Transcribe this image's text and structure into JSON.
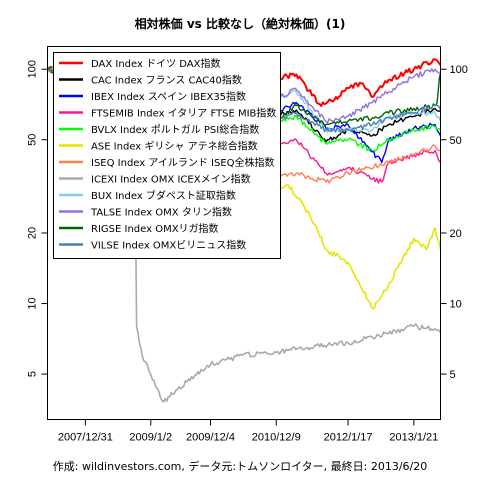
{
  "chart_data": {
    "type": "line",
    "title": "相対株価 vs 比較なし（絶対株価）(1)",
    "footer": "作成: wildinvestors.com, データ元:トムソンロイター, 最終日: 2013/6/20",
    "y_scale": "log",
    "ylim": [
      3.2,
      125
    ],
    "y_ticks": [
      5,
      10,
      20,
      50,
      100
    ],
    "x_range": [
      "2007-06-01",
      "2013-06-20"
    ],
    "x_ticks": [
      "2007/12/31",
      "2009/1/2",
      "2009/12/4",
      "2010/12/9",
      "2012/1/17",
      "2013/1/21"
    ],
    "legend_position": "top-left",
    "series": [
      {
        "name": "DAX Index ドイツ DAX指数",
        "color": "#ff0000",
        "lw": 2.0,
        "points": [
          [
            "2007-06-01",
            100
          ],
          [
            "2007-12-31",
            104
          ],
          [
            "2008-03-01",
            92
          ],
          [
            "2008-06-01",
            85
          ],
          [
            "2008-09-01",
            78
          ],
          [
            "2008-10-15",
            62
          ],
          [
            "2009-01-02",
            60
          ],
          [
            "2009-03-10",
            48
          ],
          [
            "2009-06-01",
            65
          ],
          [
            "2009-09-01",
            72
          ],
          [
            "2009-12-04",
            78
          ],
          [
            "2010-06-01",
            82
          ],
          [
            "2010-12-09",
            92
          ],
          [
            "2011-04-01",
            95
          ],
          [
            "2011-08-10",
            71
          ],
          [
            "2011-11-01",
            74
          ],
          [
            "2012-01-17",
            83
          ],
          [
            "2012-04-01",
            87
          ],
          [
            "2012-06-01",
            76
          ],
          [
            "2012-09-01",
            90
          ],
          [
            "2013-01-21",
            100
          ],
          [
            "2013-05-20",
            110
          ],
          [
            "2013-06-20",
            104
          ]
        ]
      },
      {
        "name": "CAC Index フランス CAC40指数",
        "color": "#000000",
        "lw": 1.4,
        "points": [
          [
            "2007-06-01",
            100
          ],
          [
            "2007-12-31",
            96
          ],
          [
            "2008-06-01",
            84
          ],
          [
            "2008-10-15",
            62
          ],
          [
            "2009-01-02",
            55
          ],
          [
            "2009-03-10",
            45
          ],
          [
            "2009-06-01",
            55
          ],
          [
            "2009-12-04",
            63
          ],
          [
            "2010-06-01",
            58
          ],
          [
            "2010-12-09",
            63
          ],
          [
            "2011-04-01",
            67
          ],
          [
            "2011-09-15",
            49
          ],
          [
            "2012-01-17",
            55
          ],
          [
            "2012-06-01",
            52
          ],
          [
            "2012-09-01",
            58
          ],
          [
            "2013-01-21",
            63
          ],
          [
            "2013-05-20",
            68
          ],
          [
            "2013-06-20",
            66
          ]
        ]
      },
      {
        "name": "IBEX Index スペイン IBEX35指数",
        "color": "#0000ff",
        "lw": 1.4,
        "points": [
          [
            "2007-06-01",
            100
          ],
          [
            "2007-12-31",
            102
          ],
          [
            "2008-06-01",
            85
          ],
          [
            "2008-10-15",
            66
          ],
          [
            "2009-01-02",
            63
          ],
          [
            "2009-03-10",
            52
          ],
          [
            "2009-06-01",
            63
          ],
          [
            "2009-12-04",
            77
          ],
          [
            "2010-06-01",
            58
          ],
          [
            "2010-12-09",
            66
          ],
          [
            "2011-04-01",
            72
          ],
          [
            "2011-09-15",
            56
          ],
          [
            "2012-01-17",
            58
          ],
          [
            "2012-07-24",
            40
          ],
          [
            "2012-09-01",
            50
          ],
          [
            "2013-01-21",
            56
          ],
          [
            "2013-05-20",
            58
          ],
          [
            "2013-06-20",
            52
          ]
        ]
      },
      {
        "name": "FTSEMIB Index イタリア FTSE MIB指数",
        "color": "#ff1493",
        "lw": 1.4,
        "points": [
          [
            "2007-06-01",
            100
          ],
          [
            "2007-12-31",
            90
          ],
          [
            "2008-06-01",
            73
          ],
          [
            "2008-10-15",
            56
          ],
          [
            "2009-01-02",
            50
          ],
          [
            "2009-03-10",
            38
          ],
          [
            "2009-06-01",
            50
          ],
          [
            "2009-12-04",
            55
          ],
          [
            "2010-06-01",
            45
          ],
          [
            "2010-12-09",
            47
          ],
          [
            "2011-04-01",
            50
          ],
          [
            "2011-09-15",
            36
          ],
          [
            "2012-01-17",
            38
          ],
          [
            "2012-07-24",
            33
          ],
          [
            "2012-09-01",
            40
          ],
          [
            "2013-01-21",
            43
          ],
          [
            "2013-05-20",
            45
          ],
          [
            "2013-06-20",
            40
          ]
        ]
      },
      {
        "name": "BVLX Index ポルトガル PSI総合指数",
        "color": "#00ff00",
        "lw": 1.4,
        "points": [
          [
            "2007-06-01",
            100
          ],
          [
            "2007-12-31",
            95
          ],
          [
            "2008-06-01",
            80
          ],
          [
            "2008-10-15",
            62
          ],
          [
            "2009-01-02",
            58
          ],
          [
            "2009-03-10",
            50
          ],
          [
            "2009-06-01",
            62
          ],
          [
            "2009-12-04",
            68
          ],
          [
            "2010-06-01",
            58
          ],
          [
            "2010-12-09",
            60
          ],
          [
            "2011-04-01",
            63
          ],
          [
            "2011-09-15",
            48
          ],
          [
            "2012-01-17",
            50
          ],
          [
            "2012-06-01",
            45
          ],
          [
            "2012-09-01",
            50
          ],
          [
            "2013-01-21",
            55
          ],
          [
            "2013-05-20",
            57
          ],
          [
            "2013-06-20",
            55
          ]
        ]
      },
      {
        "name": "ASE Index ギリシャ アテネ総合指数",
        "color": "#e6e600",
        "lw": 1.6,
        "points": [
          [
            "2007-06-01",
            100
          ],
          [
            "2007-12-31",
            95
          ],
          [
            "2008-06-01",
            80
          ],
          [
            "2008-10-15",
            55
          ],
          [
            "2009-01-02",
            48
          ],
          [
            "2009-03-10",
            36
          ],
          [
            "2009-06-01",
            48
          ],
          [
            "2009-10-15",
            56
          ],
          [
            "2009-12-04",
            47
          ],
          [
            "2010-06-01",
            33
          ],
          [
            "2010-12-09",
            30
          ],
          [
            "2011-02-15",
            32
          ],
          [
            "2011-06-15",
            24
          ],
          [
            "2011-09-15",
            17
          ],
          [
            "2012-01-17",
            15
          ],
          [
            "2012-06-05",
            9.5
          ],
          [
            "2012-09-01",
            12
          ],
          [
            "2013-01-21",
            19
          ],
          [
            "2013-04-01",
            17
          ],
          [
            "2013-05-20",
            21
          ],
          [
            "2013-06-20",
            17
          ]
        ]
      },
      {
        "name": "ISEQ Index アイルランド ISEQ全株指数",
        "color": "#ff7f50",
        "lw": 1.4,
        "points": [
          [
            "2007-06-01",
            100
          ],
          [
            "2007-12-31",
            80
          ],
          [
            "2008-06-01",
            60
          ],
          [
            "2008-10-15",
            40
          ],
          [
            "2009-01-02",
            35
          ],
          [
            "2009-03-10",
            24
          ],
          [
            "2009-06-01",
            32
          ],
          [
            "2009-12-04",
            36
          ],
          [
            "2010-06-01",
            34
          ],
          [
            "2010-12-09",
            35
          ],
          [
            "2011-04-01",
            36
          ],
          [
            "2011-09-15",
            33
          ],
          [
            "2012-01-17",
            36
          ],
          [
            "2012-09-01",
            40
          ],
          [
            "2013-01-21",
            43
          ],
          [
            "2013-05-20",
            47
          ],
          [
            "2013-06-20",
            45
          ]
        ]
      },
      {
        "name": "ICEXI Index OMX ICEXメイン指数",
        "color": "#aaaaaa",
        "lw": 1.6,
        "points": [
          [
            "2007-06-01",
            100
          ],
          [
            "2007-08-15",
            106
          ],
          [
            "2007-12-31",
            85
          ],
          [
            "2008-03-15",
            65
          ],
          [
            "2008-06-01",
            60
          ],
          [
            "2008-09-01",
            55
          ],
          [
            "2008-10-06",
            45
          ],
          [
            "2008-10-14",
            8
          ],
          [
            "2008-11-15",
            6
          ],
          [
            "2009-01-02",
            5
          ],
          [
            "2009-03-15",
            3.8
          ],
          [
            "2009-06-01",
            4.3
          ],
          [
            "2009-12-04",
            5.5
          ],
          [
            "2010-06-01",
            6
          ],
          [
            "2010-12-09",
            6.2
          ],
          [
            "2011-06-01",
            6.5
          ],
          [
            "2012-01-17",
            6.8
          ],
          [
            "2012-06-01",
            7.2
          ],
          [
            "2012-12-01",
            7.8
          ],
          [
            "2013-01-21",
            8
          ],
          [
            "2013-05-20",
            7.8
          ],
          [
            "2013-06-20",
            7.5
          ]
        ]
      },
      {
        "name": "BUX Index ブダペスト証取指数",
        "color": "#87ceeb",
        "lw": 1.4,
        "points": [
          [
            "2007-06-01",
            100
          ],
          [
            "2007-12-31",
            90
          ],
          [
            "2008-06-01",
            78
          ],
          [
            "2008-10-15",
            50
          ],
          [
            "2009-01-02",
            45
          ],
          [
            "2009-03-10",
            35
          ],
          [
            "2009-06-01",
            50
          ],
          [
            "2009-12-04",
            70
          ],
          [
            "2010-06-01",
            70
          ],
          [
            "2010-12-09",
            76
          ],
          [
            "2011-04-01",
            80
          ],
          [
            "2011-09-15",
            55
          ],
          [
            "2012-01-17",
            55
          ],
          [
            "2012-06-01",
            55
          ],
          [
            "2012-09-01",
            62
          ],
          [
            "2013-01-21",
            65
          ],
          [
            "2013-05-20",
            65
          ],
          [
            "2013-06-20",
            60
          ]
        ]
      },
      {
        "name": "TALSE Index OMX タリン指数",
        "color": "#9370db",
        "lw": 1.4,
        "points": [
          [
            "2007-06-01",
            100
          ],
          [
            "2007-12-31",
            85
          ],
          [
            "2008-06-01",
            70
          ],
          [
            "2008-10-15",
            45
          ],
          [
            "2009-01-02",
            40
          ],
          [
            "2009-03-10",
            28
          ],
          [
            "2009-06-01",
            40
          ],
          [
            "2009-12-04",
            52
          ],
          [
            "2010-06-01",
            60
          ],
          [
            "2010-12-09",
            75
          ],
          [
            "2011-04-01",
            82
          ],
          [
            "2011-09-15",
            60
          ],
          [
            "2012-01-17",
            63
          ],
          [
            "2012-06-01",
            72
          ],
          [
            "2012-09-01",
            80
          ],
          [
            "2013-01-21",
            93
          ],
          [
            "2013-05-20",
            100
          ],
          [
            "2013-06-20",
            94
          ]
        ]
      },
      {
        "name": "RIGSE Index OMXリガ指数",
        "color": "#006400",
        "lw": 1.4,
        "points": [
          [
            "2007-06-01",
            100
          ],
          [
            "2007-12-31",
            80
          ],
          [
            "2008-06-01",
            70
          ],
          [
            "2008-10-15",
            50
          ],
          [
            "2009-01-02",
            45
          ],
          [
            "2009-03-10",
            32
          ],
          [
            "2009-06-01",
            40
          ],
          [
            "2009-12-04",
            45
          ],
          [
            "2010-06-01",
            50
          ],
          [
            "2010-12-09",
            60
          ],
          [
            "2011-04-01",
            70
          ],
          [
            "2011-09-15",
            58
          ],
          [
            "2012-01-17",
            60
          ],
          [
            "2012-06-01",
            62
          ],
          [
            "2012-09-01",
            65
          ],
          [
            "2013-01-21",
            68
          ],
          [
            "2013-05-20",
            70
          ],
          [
            "2013-06-01",
            72
          ],
          [
            "2013-06-15",
            93
          ],
          [
            "2013-06-20",
            94
          ]
        ]
      },
      {
        "name": "VILSE Index OMXビリニュス指数",
        "color": "#4682b4",
        "lw": 1.4,
        "points": [
          [
            "2007-06-01",
            100
          ],
          [
            "2007-12-31",
            88
          ],
          [
            "2008-06-01",
            70
          ],
          [
            "2008-10-15",
            45
          ],
          [
            "2009-01-02",
            40
          ],
          [
            "2009-03-10",
            27
          ],
          [
            "2009-06-01",
            36
          ],
          [
            "2009-12-04",
            42
          ],
          [
            "2010-06-01",
            50
          ],
          [
            "2010-12-09",
            60
          ],
          [
            "2011-04-01",
            65
          ],
          [
            "2011-09-15",
            55
          ],
          [
            "2012-01-17",
            55
          ],
          [
            "2012-06-01",
            58
          ],
          [
            "2012-09-01",
            62
          ],
          [
            "2013-01-21",
            65
          ],
          [
            "2013-05-20",
            70
          ],
          [
            "2013-06-20",
            67
          ]
        ]
      }
    ]
  }
}
